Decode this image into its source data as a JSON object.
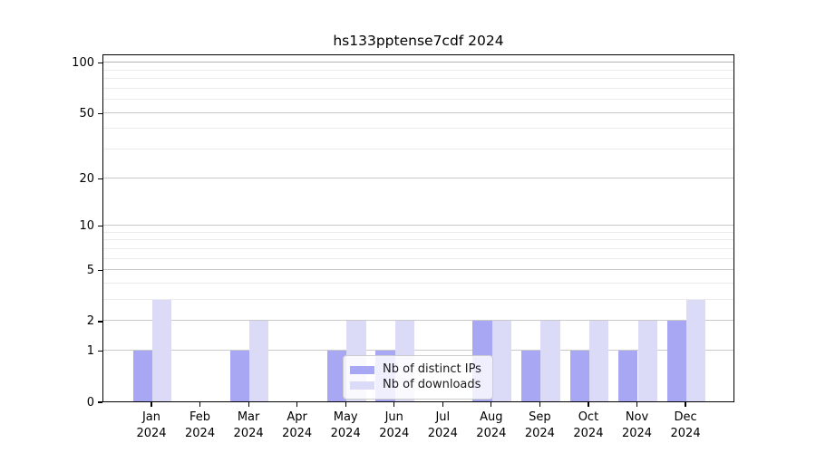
{
  "title": "hs133pptense7cdf 2024",
  "chart_data": {
    "type": "bar",
    "title": "hs133pptense7cdf 2024",
    "xlabel": "",
    "ylabel": "",
    "year": "2024",
    "categories": [
      "Jan",
      "Feb",
      "Mar",
      "Apr",
      "May",
      "Jun",
      "Jul",
      "Aug",
      "Sep",
      "Oct",
      "Nov",
      "Dec"
    ],
    "series": [
      {
        "name": "Nb of distinct IPs",
        "key": "distinct-ips",
        "color": "#a7a7f3",
        "values": [
          1,
          0,
          1,
          0,
          1,
          1,
          0,
          2,
          1,
          1,
          1,
          2
        ]
      },
      {
        "name": "Nb of downloads",
        "key": "downloads",
        "color": "#dbdbf8",
        "values": [
          3,
          0,
          2,
          0,
          2,
          2,
          0,
          2,
          2,
          2,
          2,
          3
        ]
      }
    ],
    "yscale": "log1p",
    "y_major_ticks": [
      0,
      1,
      2,
      5,
      10,
      20,
      50,
      100
    ],
    "y_minor_ticks": [
      3,
      4,
      6,
      7,
      8,
      9,
      30,
      40,
      60,
      70,
      80,
      90
    ],
    "ylim": [
      0,
      113
    ],
    "grid": true,
    "legend_position": "lower center"
  },
  "legend": {
    "items": [
      "Nb of distinct IPs",
      "Nb of downloads"
    ]
  }
}
